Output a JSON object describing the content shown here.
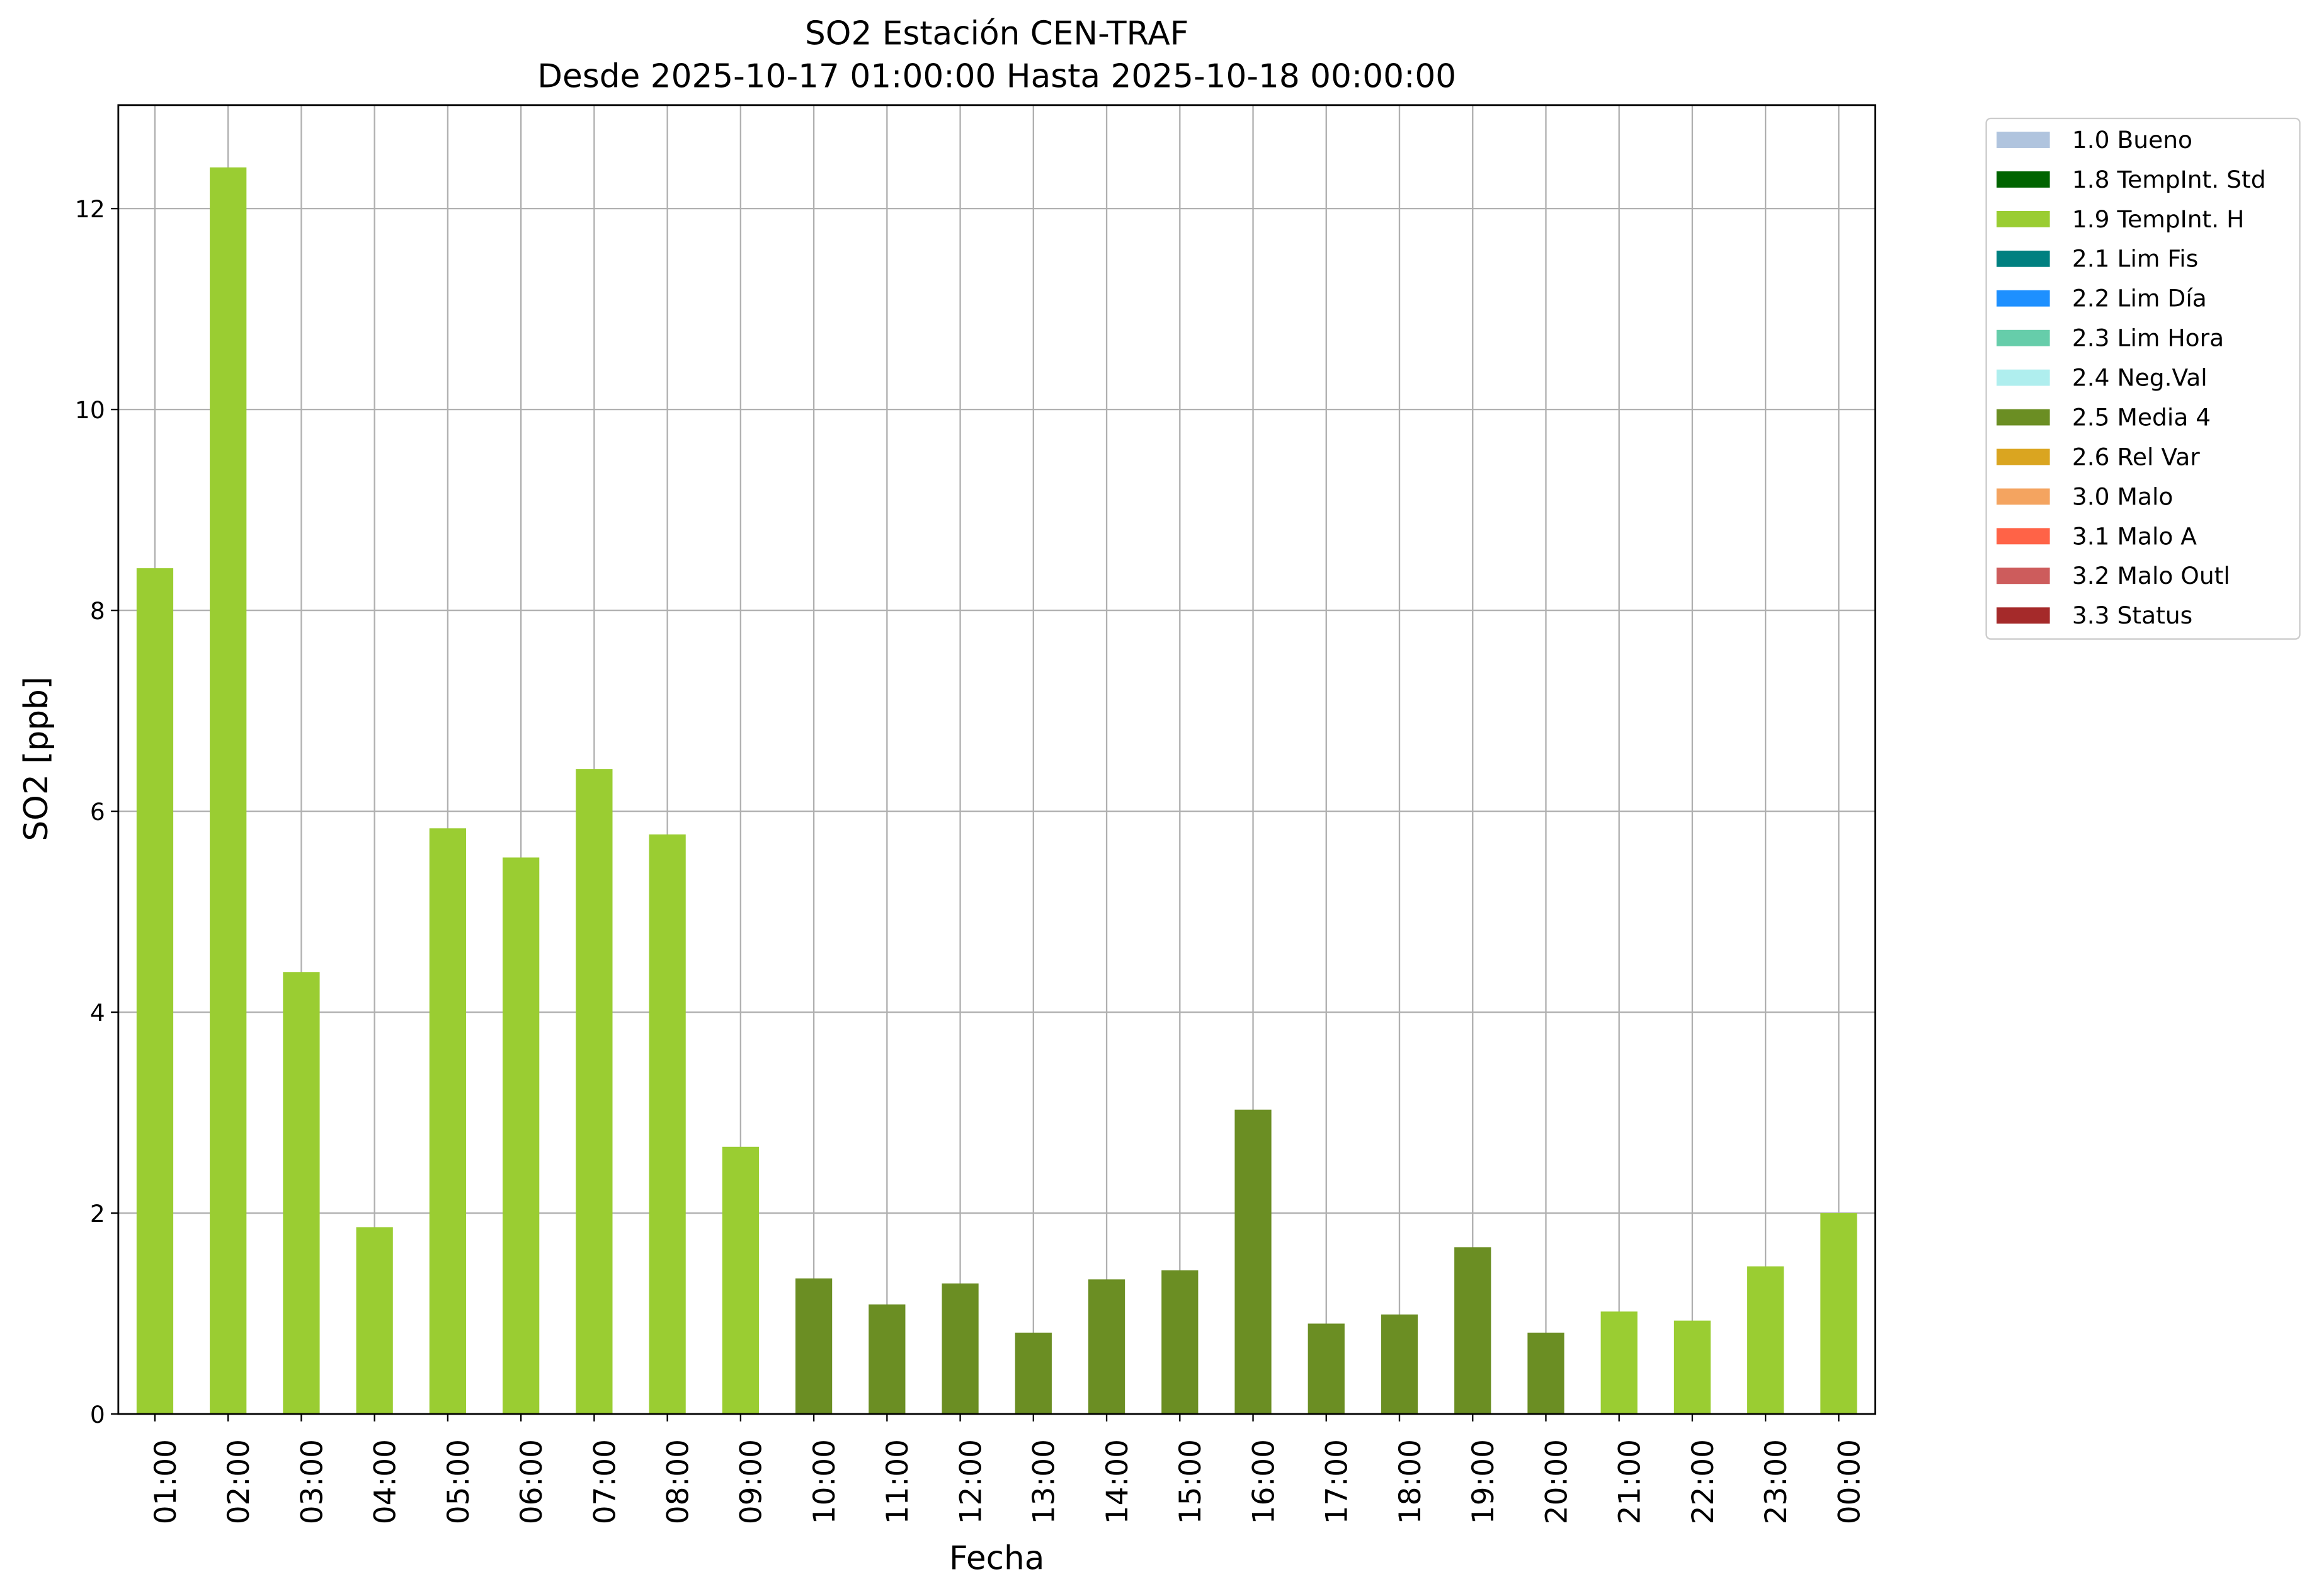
{
  "chart_data": {
    "type": "bar",
    "stacked": true,
    "title": "SO2 Estación CEN-TRAF",
    "subtitle": "Desde 2025-10-17 01:00:00 Hasta 2025-10-18 00:00:00",
    "x_label": "Fecha",
    "y_label": "SO2 [ppb]",
    "categories": [
      "01:00",
      "02:00",
      "03:00",
      "04:00",
      "05:00",
      "06:00",
      "07:00",
      "08:00",
      "09:00",
      "10:00",
      "11:00",
      "12:00",
      "13:00",
      "14:00",
      "15:00",
      "16:00",
      "17:00",
      "18:00",
      "19:00",
      "20:00",
      "21:00",
      "22:00",
      "23:00",
      "00:00"
    ],
    "series": [
      {
        "name": "1.0 Bueno",
        "color": "#b0c4de",
        "values": [
          null,
          null,
          null,
          null,
          null,
          null,
          null,
          null,
          null,
          null,
          null,
          null,
          null,
          null,
          null,
          null,
          null,
          null,
          null,
          null,
          null,
          null,
          null,
          null
        ]
      },
      {
        "name": "1.8 TempInt. Std",
        "color": "#006400",
        "values": [
          null,
          null,
          null,
          null,
          null,
          null,
          null,
          null,
          null,
          null,
          null,
          null,
          null,
          null,
          null,
          null,
          null,
          null,
          null,
          null,
          null,
          null,
          null,
          null
        ]
      },
      {
        "name": "1.9 TempInt. H",
        "color": "#9acd32",
        "values": [
          8.42,
          12.41,
          4.4,
          1.86,
          5.83,
          5.54,
          6.42,
          5.77,
          2.66,
          null,
          null,
          null,
          null,
          null,
          null,
          null,
          null,
          null,
          null,
          null,
          1.02,
          0.93,
          1.47,
          2.0
        ]
      },
      {
        "name": "2.1 Lim Fis",
        "color": "#008080",
        "values": [
          null,
          null,
          null,
          null,
          null,
          null,
          null,
          null,
          null,
          null,
          null,
          null,
          null,
          null,
          null,
          null,
          null,
          null,
          null,
          null,
          null,
          null,
          null,
          null
        ]
      },
      {
        "name": "2.2 Lim Día",
        "color": "#1e90ff",
        "values": [
          null,
          null,
          null,
          null,
          null,
          null,
          null,
          null,
          null,
          null,
          null,
          null,
          null,
          null,
          null,
          null,
          null,
          null,
          null,
          null,
          null,
          null,
          null,
          null
        ]
      },
      {
        "name": "2.3 Lim Hora",
        "color": "#66cdaa",
        "values": [
          null,
          null,
          null,
          null,
          null,
          null,
          null,
          null,
          null,
          null,
          null,
          null,
          null,
          null,
          null,
          null,
          null,
          null,
          null,
          null,
          null,
          null,
          null,
          null
        ]
      },
      {
        "name": "2.4 Neg.Val",
        "color": "#afeeee",
        "values": [
          null,
          null,
          null,
          null,
          null,
          null,
          null,
          null,
          null,
          null,
          null,
          null,
          null,
          null,
          null,
          null,
          null,
          null,
          null,
          null,
          null,
          null,
          null,
          null
        ]
      },
      {
        "name": "2.5 Media 4",
        "color": "#6b8e23",
        "values": [
          null,
          null,
          null,
          null,
          null,
          null,
          null,
          null,
          null,
          1.35,
          1.09,
          1.3,
          0.81,
          1.34,
          1.43,
          3.03,
          0.9,
          0.99,
          1.66,
          0.81,
          null,
          null,
          null,
          null
        ]
      },
      {
        "name": "2.6 Rel Var",
        "color": "#daa520",
        "values": [
          null,
          null,
          null,
          null,
          null,
          null,
          null,
          null,
          null,
          null,
          null,
          null,
          null,
          null,
          null,
          null,
          null,
          null,
          null,
          null,
          null,
          null,
          null,
          null
        ]
      },
      {
        "name": "3.0 Malo",
        "color": "#f4a460",
        "values": [
          null,
          null,
          null,
          null,
          null,
          null,
          null,
          null,
          null,
          null,
          null,
          null,
          null,
          null,
          null,
          null,
          null,
          null,
          null,
          null,
          null,
          null,
          null,
          null
        ]
      },
      {
        "name": "3.1 Malo A",
        "color": "#ff6347",
        "values": [
          null,
          null,
          null,
          null,
          null,
          null,
          null,
          null,
          null,
          null,
          null,
          null,
          null,
          null,
          null,
          null,
          null,
          null,
          null,
          null,
          null,
          null,
          null,
          null
        ]
      },
      {
        "name": "3.2 Malo Outl",
        "color": "#cd5c5c",
        "values": [
          null,
          null,
          null,
          null,
          null,
          null,
          null,
          null,
          null,
          null,
          null,
          null,
          null,
          null,
          null,
          null,
          null,
          null,
          null,
          null,
          null,
          null,
          null,
          null
        ]
      },
      {
        "name": "3.3 Status",
        "color": "#a52a2a",
        "values": [
          null,
          null,
          null,
          null,
          null,
          null,
          null,
          null,
          null,
          null,
          null,
          null,
          null,
          null,
          null,
          null,
          null,
          null,
          null,
          null,
          null,
          null,
          null,
          null
        ]
      }
    ],
    "ylim": [
      0,
      13.03
    ],
    "yticks": [
      0,
      2,
      4,
      6,
      8,
      10,
      12
    ],
    "grid": true
  }
}
